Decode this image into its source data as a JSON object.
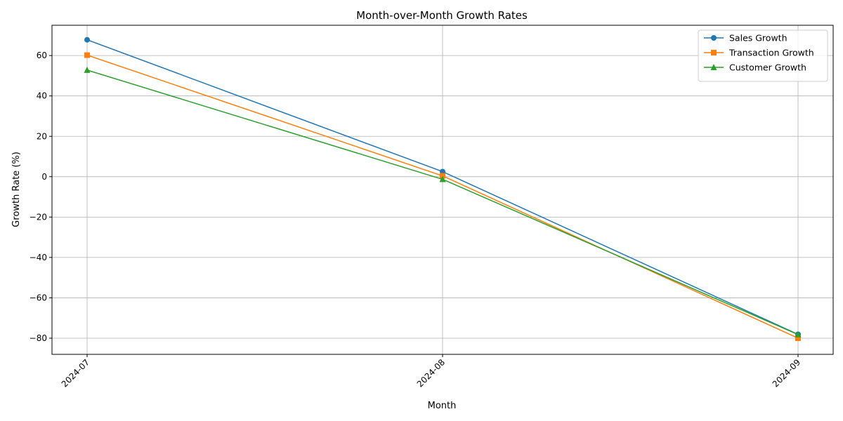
{
  "chart_data": {
    "type": "line",
    "title": "Month-over-Month Growth Rates",
    "xlabel": "Month",
    "ylabel": "Growth Rate (%)",
    "categories": [
      "2024-07",
      "2024-08",
      "2024-09"
    ],
    "ylim": [
      -88,
      75
    ],
    "yticks": [
      -80,
      -60,
      -40,
      -20,
      0,
      20,
      40,
      60
    ],
    "grid": true,
    "legend_position": "top-right",
    "series": [
      {
        "name": "Sales Growth",
        "values": [
          67.8,
          2.5,
          -78.1
        ],
        "color": "#1f77b4",
        "marker": "circle"
      },
      {
        "name": "Transaction Growth",
        "values": [
          60.2,
          0.4,
          -80.0
        ],
        "color": "#ff7f0e",
        "marker": "square"
      },
      {
        "name": "Customer Growth",
        "values": [
          52.8,
          -1.3,
          -78.2
        ],
        "color": "#2ca02c",
        "marker": "triangle"
      }
    ]
  }
}
